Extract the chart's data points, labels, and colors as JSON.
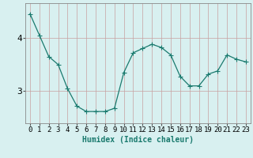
{
  "x": [
    0,
    1,
    2,
    3,
    4,
    5,
    6,
    7,
    8,
    9,
    10,
    11,
    12,
    13,
    14,
    15,
    16,
    17,
    18,
    19,
    20,
    21,
    22,
    23
  ],
  "y": [
    4.45,
    4.05,
    3.65,
    3.5,
    3.05,
    2.72,
    2.62,
    2.62,
    2.62,
    2.68,
    3.35,
    3.72,
    3.8,
    3.88,
    3.82,
    3.68,
    3.28,
    3.1,
    3.1,
    3.32,
    3.38,
    3.68,
    3.6,
    3.55
  ],
  "line_color": "#1a7a6e",
  "marker": "+",
  "marker_size": 4,
  "marker_linewidth": 0.8,
  "line_width": 0.9,
  "bg_color": "#d8f0f0",
  "grid_color_v": "#c8a0a0",
  "grid_color_h": "#c8a0a0",
  "xlabel": "Humidex (Indice chaleur)",
  "ylim": [
    2.4,
    4.65
  ],
  "xlim": [
    -0.5,
    23.5
  ],
  "yticks": [
    3,
    4
  ],
  "xtick_labels": [
    "0",
    "1",
    "2",
    "3",
    "4",
    "5",
    "6",
    "7",
    "8",
    "9",
    "10",
    "11",
    "12",
    "13",
    "14",
    "15",
    "16",
    "17",
    "18",
    "19",
    "20",
    "21",
    "22",
    "23"
  ],
  "xlabel_fontsize": 7,
  "tick_fontsize": 6.5,
  "ytick_fontsize": 8
}
